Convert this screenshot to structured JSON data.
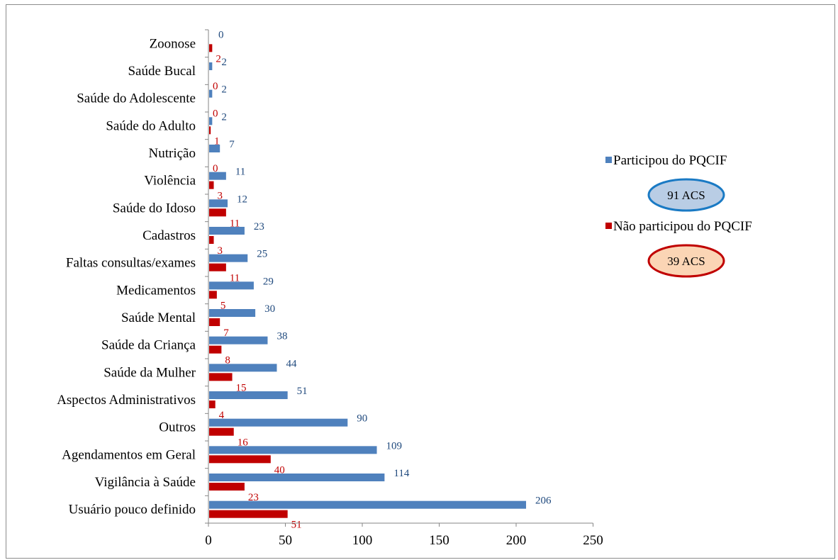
{
  "chart_data": {
    "type": "bar",
    "orientation": "horizontal",
    "categories": [
      "Usuário pouco definido",
      "Vigilância à Saúde",
      "Agendamentos em Geral",
      "Outros",
      "Aspectos Administrativos",
      "Saúde da Mulher",
      "Saúde da Criança",
      "Saúde Mental",
      "Medicamentos",
      "Faltas consultas/exames",
      "Cadastros",
      "Saúde do Idoso",
      "Violência",
      "Nutrição",
      "Saúde do Adulto",
      "Saúde do Adolescente",
      "Saúde Bucal",
      "Zoonose"
    ],
    "series": [
      {
        "name": "Participou do PQCIF",
        "color": "#4f81bd",
        "label_color": "#1f497d",
        "values": [
          206,
          114,
          109,
          90,
          51,
          44,
          38,
          30,
          29,
          25,
          23,
          12,
          11,
          7,
          2,
          2,
          2,
          0
        ]
      },
      {
        "name": "Não participou do PQCIF",
        "color": "#c00000",
        "label_color": "#c00000",
        "values": [
          51,
          23,
          40,
          16,
          4,
          15,
          8,
          7,
          5,
          11,
          3,
          11,
          3,
          0,
          1,
          0,
          0,
          2
        ]
      }
    ],
    "xlim": [
      0,
      250
    ],
    "xticks": [
      0,
      50,
      100,
      150,
      200,
      250
    ],
    "grid": false,
    "legend_position": "right",
    "annotations": [
      {
        "text": "91 ACS",
        "fill": "#b9cde5",
        "stroke": "#1a7ac4"
      },
      {
        "text": "39 ACS",
        "fill": "#fbd5b5",
        "stroke": "#c00000"
      }
    ]
  }
}
